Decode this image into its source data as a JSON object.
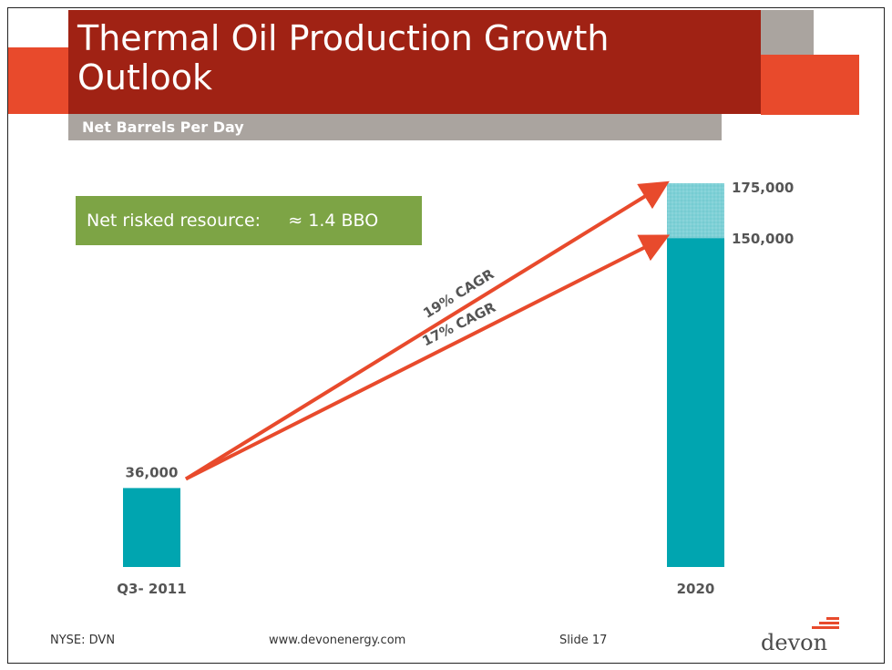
{
  "slide": {
    "title": "Thermal Oil Production Growth Outlook",
    "subtitle": "Net Barrels Per Day",
    "callout_label": "Net risked resource:",
    "callout_value": "≈ 1.4 BBO",
    "footer_ticker": "NYSE: DVN",
    "footer_url": "www.devonenergy.com",
    "footer_slide": "Slide 17",
    "logo_text": "devon"
  },
  "colors": {
    "title_band": "#a02214",
    "accent_orange": "#e84a2c",
    "accent_grey": "#aaa49f",
    "callout_green": "#7da445",
    "bar_teal": "#00a5b0",
    "bar_light_teal": "#7fd0d6",
    "arrow_red": "#e84a2c",
    "label_grey": "#555555"
  },
  "chart_data": {
    "type": "bar",
    "title": "Thermal Oil Production Growth Outlook",
    "ylabel": "Net Barrels Per Day",
    "categories": [
      "Q3- 2011",
      "2020"
    ],
    "series": [
      {
        "values": [
          36000,
          150000
        ]
      },
      {
        "values": [
          0,
          25000
        ]
      }
    ],
    "value_labels": [
      "36,000",
      "150,000",
      "175,000"
    ],
    "annotations": [
      {
        "text": "19% CAGR",
        "from": 36000,
        "to": 175000
      },
      {
        "text": "17% CAGR",
        "from": 36000,
        "to": 150000
      }
    ],
    "ylim": [
      0,
      175000
    ],
    "grid": false
  }
}
